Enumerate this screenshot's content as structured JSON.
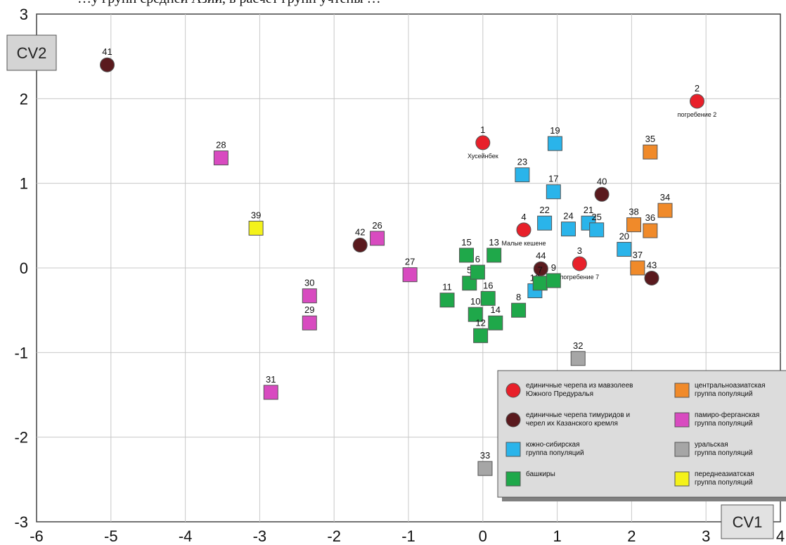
{
  "caption_fragment": "…у групп средней Азии, в расчет групп учтены …",
  "chart_data": {
    "type": "scatter",
    "xlabel": "CV1",
    "ylabel": "CV2",
    "xlim": [
      -6,
      4
    ],
    "ylim": [
      -3,
      3
    ],
    "x_ticks": [
      -6,
      -5,
      -4,
      -3,
      -2,
      -1,
      0,
      1,
      2,
      3,
      4
    ],
    "y_ticks": [
      -3,
      -2,
      -1,
      0,
      1,
      2,
      3
    ],
    "grid": true,
    "legend_position": "bottom-right",
    "groups": [
      {
        "key": "red",
        "shape": "circle",
        "color": "#e8202a",
        "label_lines": [
          "единичные черепа из мавзолеев",
          "Южного Предуралья"
        ]
      },
      {
        "key": "maroon",
        "shape": "circle",
        "color": "#5a1a1e",
        "label_lines": [
          "единичные черепа тимуридов и",
          "черел их Казанского кремля"
        ]
      },
      {
        "key": "blue",
        "shape": "square",
        "color": "#2ab4ea",
        "label_lines": [
          "южно-сибирская",
          "группа популяций"
        ]
      },
      {
        "key": "green",
        "shape": "square",
        "color": "#1fa84a",
        "label_lines": [
          "башкиры"
        ]
      },
      {
        "key": "orange",
        "shape": "square",
        "color": "#f08a2a",
        "label_lines": [
          "центральноазиатская",
          "группа популяций"
        ]
      },
      {
        "key": "magenta",
        "shape": "square",
        "color": "#d84bc0",
        "label_lines": [
          "памиро-ферганская",
          "группа популяций"
        ]
      },
      {
        "key": "gray",
        "shape": "square",
        "color": "#a6a6a6",
        "label_lines": [
          "уральская",
          "группа популяций"
        ]
      },
      {
        "key": "yellow",
        "shape": "square",
        "color": "#f4f21a",
        "label_lines": [
          "переднеазиатская",
          "группа популяций"
        ]
      }
    ],
    "points": [
      {
        "id": "1",
        "x": 0.0,
        "y": 1.48,
        "group": "red",
        "name": "Хусейнбек"
      },
      {
        "id": "2",
        "x": 2.88,
        "y": 1.97,
        "group": "red",
        "name": "погребение 2"
      },
      {
        "id": "3",
        "x": 1.3,
        "y": 0.05,
        "group": "red",
        "name": "погребение 7"
      },
      {
        "id": "4",
        "x": 0.55,
        "y": 0.45,
        "group": "red",
        "name": "Малые кешене"
      },
      {
        "id": "40",
        "x": 1.6,
        "y": 0.87,
        "group": "maroon"
      },
      {
        "id": "41",
        "x": -5.05,
        "y": 2.4,
        "group": "maroon"
      },
      {
        "id": "42",
        "x": -1.65,
        "y": 0.27,
        "group": "maroon"
      },
      {
        "id": "43",
        "x": 2.27,
        "y": -0.12,
        "group": "maroon"
      },
      {
        "id": "44",
        "x": 0.78,
        "y": -0.01,
        "group": "maroon"
      },
      {
        "id": "17",
        "x": 0.95,
        "y": 0.9,
        "group": "blue"
      },
      {
        "id": "18",
        "x": 0.7,
        "y": -0.27,
        "group": "blue"
      },
      {
        "id": "19",
        "x": 0.97,
        "y": 1.47,
        "group": "blue"
      },
      {
        "id": "20",
        "x": 1.9,
        "y": 0.22,
        "group": "blue"
      },
      {
        "id": "21",
        "x": 1.42,
        "y": 0.53,
        "group": "blue"
      },
      {
        "id": "22",
        "x": 0.83,
        "y": 0.53,
        "group": "blue"
      },
      {
        "id": "23",
        "x": 0.53,
        "y": 1.1,
        "group": "blue"
      },
      {
        "id": "24",
        "x": 1.15,
        "y": 0.46,
        "group": "blue"
      },
      {
        "id": "25",
        "x": 1.53,
        "y": 0.45,
        "group": "blue"
      },
      {
        "id": "5",
        "x": -0.18,
        "y": -0.18,
        "group": "green"
      },
      {
        "id": "6",
        "x": -0.07,
        "y": -0.05,
        "group": "green"
      },
      {
        "id": "7",
        "x": 0.77,
        "y": -0.18,
        "group": "green"
      },
      {
        "id": "8",
        "x": 0.48,
        "y": -0.5,
        "group": "green"
      },
      {
        "id": "9",
        "x": 0.95,
        "y": -0.15,
        "group": "green"
      },
      {
        "id": "10",
        "x": -0.1,
        "y": -0.55,
        "group": "green"
      },
      {
        "id": "11",
        "x": -0.48,
        "y": -0.38,
        "group": "green"
      },
      {
        "id": "12",
        "x": -0.03,
        "y": -0.8,
        "group": "green"
      },
      {
        "id": "13",
        "x": 0.15,
        "y": 0.15,
        "group": "green"
      },
      {
        "id": "14",
        "x": 0.17,
        "y": -0.65,
        "group": "green"
      },
      {
        "id": "15",
        "x": -0.22,
        "y": 0.15,
        "group": "green"
      },
      {
        "id": "16",
        "x": 0.07,
        "y": -0.36,
        "group": "green"
      },
      {
        "id": "34",
        "x": 2.45,
        "y": 0.68,
        "group": "orange"
      },
      {
        "id": "35",
        "x": 2.25,
        "y": 1.37,
        "group": "orange"
      },
      {
        "id": "36",
        "x": 2.25,
        "y": 0.44,
        "group": "orange"
      },
      {
        "id": "37",
        "x": 2.08,
        "y": 0.0,
        "group": "orange"
      },
      {
        "id": "38",
        "x": 2.03,
        "y": 0.51,
        "group": "orange"
      },
      {
        "id": "26",
        "x": -1.42,
        "y": 0.35,
        "group": "magenta"
      },
      {
        "id": "27",
        "x": -0.98,
        "y": -0.08,
        "group": "magenta"
      },
      {
        "id": "28",
        "x": -3.52,
        "y": 1.3,
        "group": "magenta"
      },
      {
        "id": "29",
        "x": -2.33,
        "y": -0.65,
        "group": "magenta"
      },
      {
        "id": "30",
        "x": -2.33,
        "y": -0.33,
        "group": "magenta"
      },
      {
        "id": "31",
        "x": -2.85,
        "y": -1.47,
        "group": "magenta"
      },
      {
        "id": "32",
        "x": 1.28,
        "y": -1.07,
        "group": "gray"
      },
      {
        "id": "33",
        "x": 0.03,
        "y": -2.37,
        "group": "gray"
      },
      {
        "id": "39",
        "x": -3.05,
        "y": 0.47,
        "group": "yellow"
      }
    ]
  }
}
